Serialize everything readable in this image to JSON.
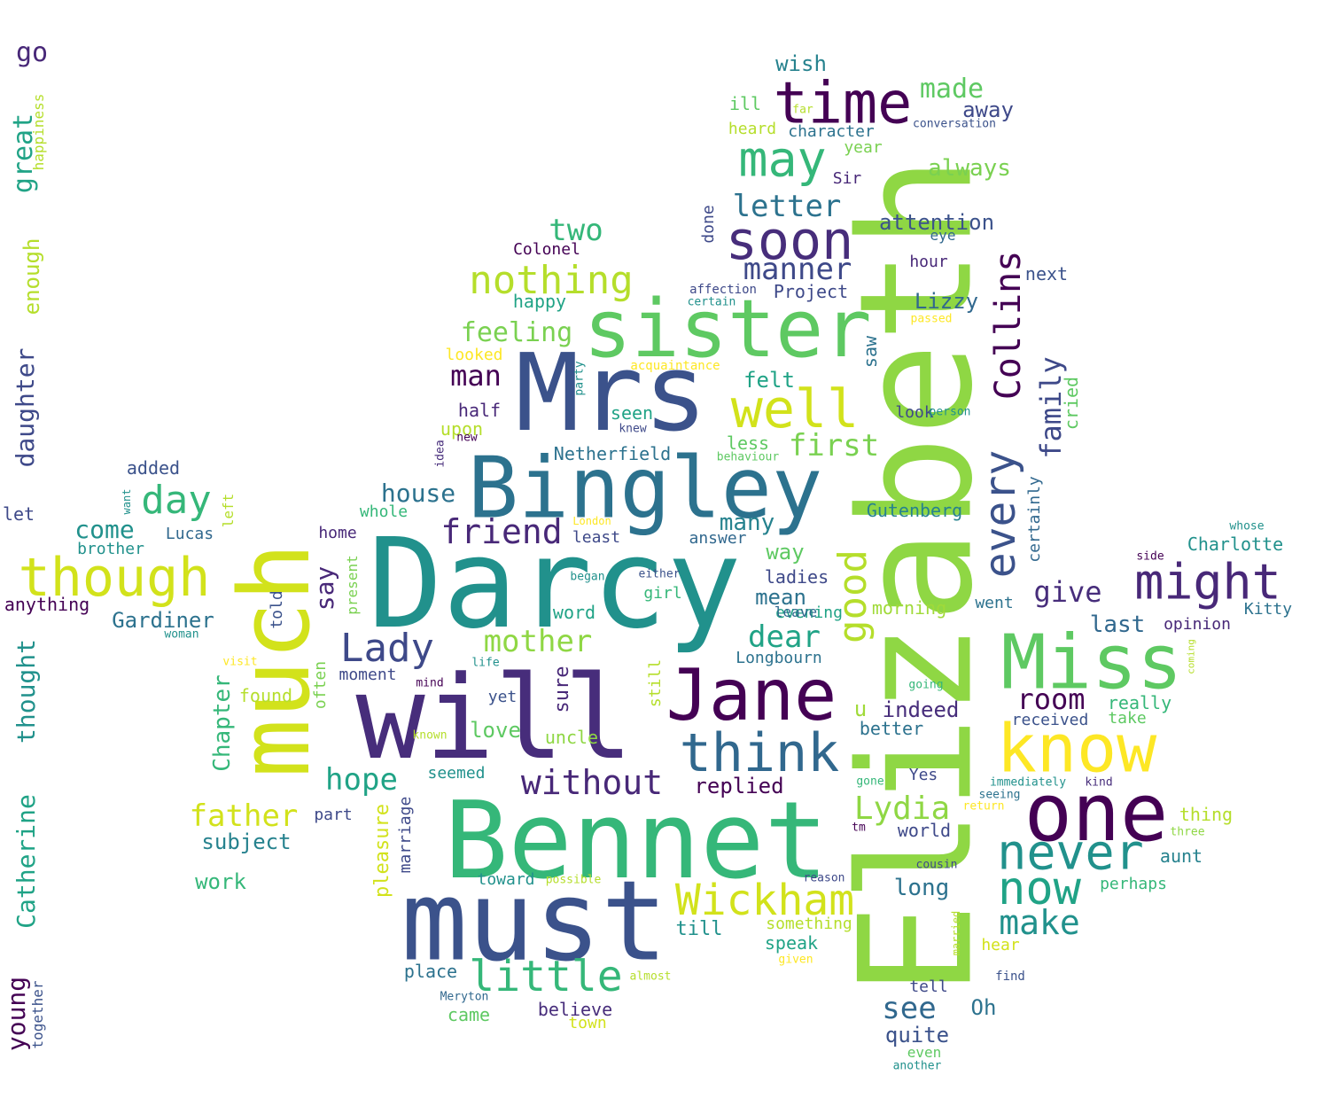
{
  "words": [
    {
      "text": "Elizabeth",
      "color": "#8fd744"
    },
    {
      "text": "Darcy",
      "color": "#21918c"
    },
    {
      "text": "Bennet",
      "color": "#35b779"
    },
    {
      "text": "will",
      "color": "#472d7b"
    },
    {
      "text": "Mrs",
      "color": "#3b528b"
    },
    {
      "text": "must",
      "color": "#3b528b"
    },
    {
      "text": "much",
      "color": "#d2e21b"
    },
    {
      "text": "Bingley",
      "color": "#2c728e"
    },
    {
      "text": "sister",
      "color": "#5ec962"
    },
    {
      "text": "Jane",
      "color": "#440154"
    },
    {
      "text": "Miss",
      "color": "#5ec962"
    },
    {
      "text": "know",
      "color": "#fde725"
    },
    {
      "text": "one",
      "color": "#440154"
    },
    {
      "text": "time",
      "color": "#440154"
    },
    {
      "text": "soon",
      "color": "#472d7b"
    },
    {
      "text": "may",
      "color": "#35b779"
    },
    {
      "text": "well",
      "color": "#d2e21b"
    },
    {
      "text": "think",
      "color": "#31688e"
    },
    {
      "text": "though",
      "color": "#d2e21b"
    },
    {
      "text": "never",
      "color": "#21918c"
    },
    {
      "text": "now",
      "color": "#20a386"
    },
    {
      "text": "might",
      "color": "#482878"
    },
    {
      "text": "every",
      "color": "#3b528b"
    },
    {
      "text": "Collins",
      "color": "#440154"
    },
    {
      "text": "little",
      "color": "#35b779"
    },
    {
      "text": "Wickham",
      "color": "#d2e21b"
    },
    {
      "text": "nothing",
      "color": "#b5de2b"
    },
    {
      "text": "good",
      "color": "#b5de2b"
    },
    {
      "text": "without",
      "color": "#482878"
    },
    {
      "text": "Lady",
      "color": "#3e4989"
    },
    {
      "text": "day",
      "color": "#35b779"
    },
    {
      "text": "friend",
      "color": "#482878"
    },
    {
      "text": "mother",
      "color": "#8fd744"
    },
    {
      "text": "father",
      "color": "#d2e21b"
    },
    {
      "text": "hope",
      "color": "#20a386"
    },
    {
      "text": "make",
      "color": "#21918c"
    },
    {
      "text": "letter",
      "color": "#2c728e"
    },
    {
      "text": "manner",
      "color": "#3e4989"
    },
    {
      "text": "first",
      "color": "#7ad151"
    },
    {
      "text": "dear",
      "color": "#20a386"
    },
    {
      "text": "Lydia",
      "color": "#8fd744"
    },
    {
      "text": "see",
      "color": "#31688e"
    },
    {
      "text": "room",
      "color": "#440154"
    },
    {
      "text": "give",
      "color": "#472d7b"
    },
    {
      "text": "family",
      "color": "#3e4989"
    },
    {
      "text": "made",
      "color": "#5ec962"
    },
    {
      "text": "two",
      "color": "#35b779"
    },
    {
      "text": "feeling",
      "color": "#7ad151"
    },
    {
      "text": "man",
      "color": "#440154"
    },
    {
      "text": "great",
      "color": "#20a386"
    },
    {
      "text": "Catherine",
      "color": "#20a386"
    },
    {
      "text": "thought",
      "color": "#21918c"
    },
    {
      "text": "daughter",
      "color": "#3e4989"
    },
    {
      "text": "young",
      "color": "#440154"
    },
    {
      "text": "enough",
      "color": "#b5de2b"
    },
    {
      "text": "say",
      "color": "#482878"
    },
    {
      "text": "house",
      "color": "#2c728e"
    },
    {
      "text": "come",
      "color": "#21918c"
    },
    {
      "text": "many",
      "color": "#26828e"
    },
    {
      "text": "always",
      "color": "#7ad151"
    },
    {
      "text": "attention",
      "color": "#3b528b"
    },
    {
      "text": "Chapter",
      "color": "#35b779"
    },
    {
      "text": "last",
      "color": "#31688e"
    },
    {
      "text": "long",
      "color": "#2c728e"
    },
    {
      "text": "Gardiner",
      "color": "#2c728e"
    },
    {
      "text": "replied",
      "color": "#440154"
    },
    {
      "text": "indeed",
      "color": "#472d7b"
    },
    {
      "text": "love",
      "color": "#5ec962"
    },
    {
      "text": "subject",
      "color": "#26828e"
    },
    {
      "text": "quite",
      "color": "#3b528b"
    },
    {
      "text": "away",
      "color": "#3e4989"
    },
    {
      "text": "wish",
      "color": "#26828e"
    },
    {
      "text": "way",
      "color": "#5ec962"
    },
    {
      "text": "felt",
      "color": "#20a386"
    },
    {
      "text": "Lizzy",
      "color": "#31688e"
    },
    {
      "text": "pleasure",
      "color": "#d2e21b"
    },
    {
      "text": "mean",
      "color": "#2c728e"
    },
    {
      "text": "sure",
      "color": "#482878"
    },
    {
      "text": "work",
      "color": "#35b779"
    },
    {
      "text": "Oh",
      "color": "#2c728e"
    },
    {
      "text": "Kitty",
      "color": "#2c728e"
    },
    {
      "text": "aunt",
      "color": "#26828e"
    },
    {
      "text": "Charlotte",
      "color": "#21918c"
    },
    {
      "text": "Netherfield",
      "color": "#2c728e"
    },
    {
      "text": "Gutenberg",
      "color": "#26828e"
    },
    {
      "text": "Longbourn",
      "color": "#2c728e"
    },
    {
      "text": "believe",
      "color": "#472d7b"
    },
    {
      "text": "uncle",
      "color": "#8fd744"
    },
    {
      "text": "half",
      "color": "#482878"
    },
    {
      "text": "upon",
      "color": "#b5de2b"
    },
    {
      "text": "seen",
      "color": "#20a386"
    },
    {
      "text": "less",
      "color": "#5ec962"
    },
    {
      "text": "ladies",
      "color": "#3e4989"
    },
    {
      "text": "evening",
      "color": "#20a386"
    },
    {
      "text": "morning",
      "color": "#a0da39"
    },
    {
      "text": "perhaps",
      "color": "#35b779"
    },
    {
      "text": "really",
      "color": "#35b779"
    },
    {
      "text": "received",
      "color": "#3b528b"
    },
    {
      "text": "better",
      "color": "#2c728e"
    },
    {
      "text": "something",
      "color": "#b5de2b"
    },
    {
      "text": "speak",
      "color": "#20a386"
    },
    {
      "text": "till",
      "color": "#21918c"
    },
    {
      "text": "hear",
      "color": "#d2e21b"
    },
    {
      "text": "world",
      "color": "#3e4989"
    },
    {
      "text": "thing",
      "color": "#b5de2b"
    },
    {
      "text": "opinion",
      "color": "#482878"
    },
    {
      "text": "went",
      "color": "#2c728e"
    },
    {
      "text": "Project",
      "color": "#3e4989"
    },
    {
      "text": "happy",
      "color": "#20a386"
    },
    {
      "text": "Colonel",
      "color": "#440154"
    },
    {
      "text": "character",
      "color": "#2c728e"
    },
    {
      "text": "heard",
      "color": "#b5de2b"
    },
    {
      "text": "ill",
      "color": "#5ec962"
    },
    {
      "text": "year",
      "color": "#7ad151"
    },
    {
      "text": "Sir",
      "color": "#482878"
    },
    {
      "text": "hour",
      "color": "#482878"
    },
    {
      "text": "next",
      "color": "#3b528b"
    },
    {
      "text": "eye",
      "color": "#31688e"
    },
    {
      "text": "look",
      "color": "#3e4989"
    },
    {
      "text": "saw",
      "color": "#2c728e"
    },
    {
      "text": "done",
      "color": "#3e4989"
    },
    {
      "text": "cried",
      "color": "#5ec962"
    },
    {
      "text": "certainly",
      "color": "#31688e"
    },
    {
      "text": "whole",
      "color": "#35b779"
    },
    {
      "text": "Lucas",
      "color": "#31688e"
    },
    {
      "text": "brother",
      "color": "#21918c"
    },
    {
      "text": "added",
      "color": "#3b528b"
    },
    {
      "text": "anything",
      "color": "#440154"
    },
    {
      "text": "let",
      "color": "#3e4989"
    },
    {
      "text": "go",
      "color": "#482878"
    },
    {
      "text": "happiness",
      "color": "#b5de2b"
    },
    {
      "text": "together",
      "color": "#3b528b"
    },
    {
      "text": "told",
      "color": "#3b528b"
    },
    {
      "text": "home",
      "color": "#482878"
    },
    {
      "text": "present",
      "color": "#7ad151"
    },
    {
      "text": "left",
      "color": "#b5de2b"
    },
    {
      "text": "often",
      "color": "#7ad151"
    },
    {
      "text": "moment",
      "color": "#3e4989"
    },
    {
      "text": "found",
      "color": "#b5de2b"
    },
    {
      "text": "part",
      "color": "#3e4989"
    },
    {
      "text": "marriage",
      "color": "#3e4989"
    },
    {
      "text": "seemed",
      "color": "#21918c"
    },
    {
      "text": "yet",
      "color": "#3b528b"
    },
    {
      "text": "place",
      "color": "#2c728e"
    },
    {
      "text": "came",
      "color": "#5ec962"
    },
    {
      "text": "town",
      "color": "#d2e21b"
    },
    {
      "text": "toward",
      "color": "#21918c"
    },
    {
      "text": "answer",
      "color": "#31688e"
    },
    {
      "text": "least",
      "color": "#3e4989"
    },
    {
      "text": "girl",
      "color": "#35b779"
    },
    {
      "text": "word",
      "color": "#20a386"
    },
    {
      "text": "still",
      "color": "#b5de2b"
    },
    {
      "text": "u",
      "color": "#a0da39"
    },
    {
      "text": "leave",
      "color": "#31688e"
    },
    {
      "text": "tell",
      "color": "#3e4989"
    },
    {
      "text": "Yes",
      "color": "#3e4989"
    },
    {
      "text": "take",
      "color": "#5ec962"
    },
    {
      "text": "even",
      "color": "#5ec962"
    },
    {
      "text": "looked",
      "color": "#fde725"
    },
    {
      "text": "acquaintance",
      "color": "#fde725"
    },
    {
      "text": "affection",
      "color": "#3e4989"
    },
    {
      "text": "certain",
      "color": "#21918c"
    },
    {
      "text": "conversation",
      "color": "#3b528b"
    },
    {
      "text": "far",
      "color": "#b5de2b"
    },
    {
      "text": "passed",
      "color": "#fde725"
    },
    {
      "text": "party",
      "color": "#21918c"
    },
    {
      "text": "person",
      "color": "#21918c"
    },
    {
      "text": "knew",
      "color": "#3e4989"
    },
    {
      "text": "new",
      "color": "#440154"
    },
    {
      "text": "idea",
      "color": "#472d7b"
    },
    {
      "text": "behaviour",
      "color": "#5ec962"
    },
    {
      "text": "London",
      "color": "#fde725"
    },
    {
      "text": "began",
      "color": "#21918c"
    },
    {
      "text": "either",
      "color": "#3b528b"
    },
    {
      "text": "want",
      "color": "#21918c"
    },
    {
      "text": "woman",
      "color": "#21918c"
    },
    {
      "text": "visit",
      "color": "#fde725"
    },
    {
      "text": "life",
      "color": "#21918c"
    },
    {
      "text": "mind",
      "color": "#440154"
    },
    {
      "text": "known",
      "color": "#b5de2b"
    },
    {
      "text": "possible",
      "color": "#b5de2b"
    },
    {
      "text": "almost",
      "color": "#b5de2b"
    },
    {
      "text": "Meryton",
      "color": "#31688e"
    },
    {
      "text": "given",
      "color": "#fde725"
    },
    {
      "text": "reason",
      "color": "#3e4989"
    },
    {
      "text": "cousin",
      "color": "#3e4989"
    },
    {
      "text": "married",
      "color": "#b5de2b"
    },
    {
      "text": "find",
      "color": "#3b528b"
    },
    {
      "text": "another",
      "color": "#21918c"
    },
    {
      "text": "tm",
      "color": "#440154"
    },
    {
      "text": "gone",
      "color": "#35b779"
    },
    {
      "text": "going",
      "color": "#35b779"
    },
    {
      "text": "immediately",
      "color": "#21918c"
    },
    {
      "text": "seeing",
      "color": "#2c728e"
    },
    {
      "text": "return",
      "color": "#fde725"
    },
    {
      "text": "kind",
      "color": "#472d7b"
    },
    {
      "text": "three",
      "color": "#8fd744"
    },
    {
      "text": "side",
      "color": "#440154"
    },
    {
      "text": "whose",
      "color": "#21918c"
    },
    {
      "text": "coming",
      "color": "#b5de2b"
    }
  ]
}
